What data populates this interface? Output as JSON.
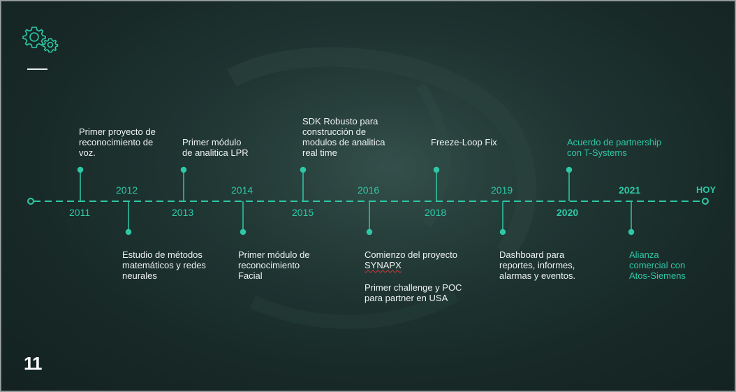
{
  "slide": {
    "page_number": "11",
    "icons": {
      "logo": "gears-icon"
    },
    "colors": {
      "accent": "#2ec8a6",
      "background": "#1b2f2c",
      "text": "#eef3f2"
    }
  },
  "timeline": {
    "end_label": "HOY",
    "years": {
      "y2011": "2011",
      "y2012": "2012",
      "y2013": "2013",
      "y2014": "2014",
      "y2015": "2015",
      "y2016": "2016",
      "y2018": "2018",
      "y2019": "2019",
      "y2020": "2020",
      "y2021": "2021"
    },
    "events": {
      "e2011": [
        "Primer proyecto de",
        "reconocimiento de",
        "voz."
      ],
      "e2012": [
        "Estudio de métodos",
        "matemáticos y redes",
        "neurales"
      ],
      "e2013": [
        "Primer módulo",
        "de analitica LPR"
      ],
      "e2014": [
        "Primer módulo de",
        "reconocimiento",
        "Facial"
      ],
      "e2015": [
        "SDK Robusto para",
        "construcción de",
        "modulos de analitica",
        "real time"
      ],
      "e2016a": [
        "Comienzo del proyecto",
        "SYNAPX"
      ],
      "e2016b": [
        "Primer challenge y POC",
        "para partner en USA"
      ],
      "e2018": [
        "Freeze-Loop Fix"
      ],
      "e2019": [
        "Dashboard para",
        "reportes, informes,",
        "alarmas y eventos."
      ],
      "e2020": [
        "Acuerdo de partnership",
        "con T-Systems"
      ],
      "e2021": [
        "Alianza",
        "comercial con",
        "Atos-Siemens"
      ]
    }
  }
}
